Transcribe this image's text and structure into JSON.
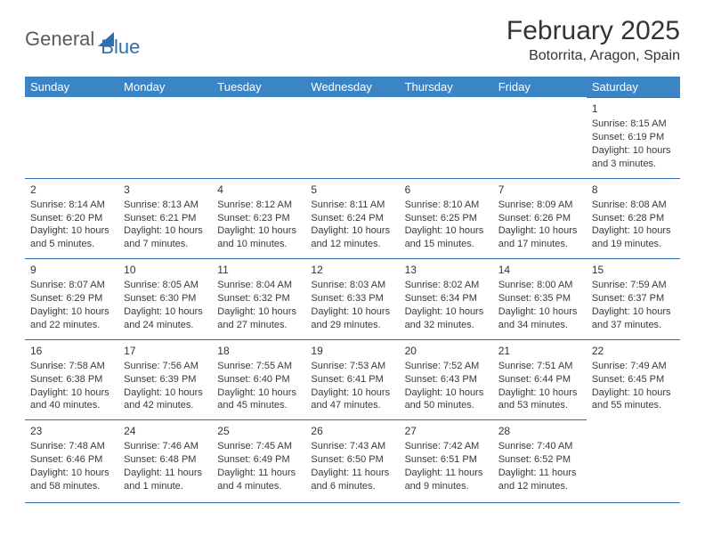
{
  "logo": {
    "word1": "General",
    "word2": "Blue"
  },
  "title": "February 2025",
  "location": "Botorrita, Aragon, Spain",
  "colors": {
    "header_bg": "#3b85c4",
    "rule": "#2f6fb0",
    "text": "#333333",
    "logo_gray": "#5a5a5a",
    "logo_blue": "#2f6fb0",
    "page_bg": "#ffffff"
  },
  "weekdays": [
    "Sunday",
    "Monday",
    "Tuesday",
    "Wednesday",
    "Thursday",
    "Friday",
    "Saturday"
  ],
  "first_weekday_index": 6,
  "days": [
    {
      "n": 1,
      "sunrise": "8:15 AM",
      "sunset": "6:19 PM",
      "daylight": "10 hours and 3 minutes."
    },
    {
      "n": 2,
      "sunrise": "8:14 AM",
      "sunset": "6:20 PM",
      "daylight": "10 hours and 5 minutes."
    },
    {
      "n": 3,
      "sunrise": "8:13 AM",
      "sunset": "6:21 PM",
      "daylight": "10 hours and 7 minutes."
    },
    {
      "n": 4,
      "sunrise": "8:12 AM",
      "sunset": "6:23 PM",
      "daylight": "10 hours and 10 minutes."
    },
    {
      "n": 5,
      "sunrise": "8:11 AM",
      "sunset": "6:24 PM",
      "daylight": "10 hours and 12 minutes."
    },
    {
      "n": 6,
      "sunrise": "8:10 AM",
      "sunset": "6:25 PM",
      "daylight": "10 hours and 15 minutes."
    },
    {
      "n": 7,
      "sunrise": "8:09 AM",
      "sunset": "6:26 PM",
      "daylight": "10 hours and 17 minutes."
    },
    {
      "n": 8,
      "sunrise": "8:08 AM",
      "sunset": "6:28 PM",
      "daylight": "10 hours and 19 minutes."
    },
    {
      "n": 9,
      "sunrise": "8:07 AM",
      "sunset": "6:29 PM",
      "daylight": "10 hours and 22 minutes."
    },
    {
      "n": 10,
      "sunrise": "8:05 AM",
      "sunset": "6:30 PM",
      "daylight": "10 hours and 24 minutes."
    },
    {
      "n": 11,
      "sunrise": "8:04 AM",
      "sunset": "6:32 PM",
      "daylight": "10 hours and 27 minutes."
    },
    {
      "n": 12,
      "sunrise": "8:03 AM",
      "sunset": "6:33 PM",
      "daylight": "10 hours and 29 minutes."
    },
    {
      "n": 13,
      "sunrise": "8:02 AM",
      "sunset": "6:34 PM",
      "daylight": "10 hours and 32 minutes."
    },
    {
      "n": 14,
      "sunrise": "8:00 AM",
      "sunset": "6:35 PM",
      "daylight": "10 hours and 34 minutes."
    },
    {
      "n": 15,
      "sunrise": "7:59 AM",
      "sunset": "6:37 PM",
      "daylight": "10 hours and 37 minutes."
    },
    {
      "n": 16,
      "sunrise": "7:58 AM",
      "sunset": "6:38 PM",
      "daylight": "10 hours and 40 minutes."
    },
    {
      "n": 17,
      "sunrise": "7:56 AM",
      "sunset": "6:39 PM",
      "daylight": "10 hours and 42 minutes."
    },
    {
      "n": 18,
      "sunrise": "7:55 AM",
      "sunset": "6:40 PM",
      "daylight": "10 hours and 45 minutes."
    },
    {
      "n": 19,
      "sunrise": "7:53 AM",
      "sunset": "6:41 PM",
      "daylight": "10 hours and 47 minutes."
    },
    {
      "n": 20,
      "sunrise": "7:52 AM",
      "sunset": "6:43 PM",
      "daylight": "10 hours and 50 minutes."
    },
    {
      "n": 21,
      "sunrise": "7:51 AM",
      "sunset": "6:44 PM",
      "daylight": "10 hours and 53 minutes."
    },
    {
      "n": 22,
      "sunrise": "7:49 AM",
      "sunset": "6:45 PM",
      "daylight": "10 hours and 55 minutes."
    },
    {
      "n": 23,
      "sunrise": "7:48 AM",
      "sunset": "6:46 PM",
      "daylight": "10 hours and 58 minutes."
    },
    {
      "n": 24,
      "sunrise": "7:46 AM",
      "sunset": "6:48 PM",
      "daylight": "11 hours and 1 minute."
    },
    {
      "n": 25,
      "sunrise": "7:45 AM",
      "sunset": "6:49 PM",
      "daylight": "11 hours and 4 minutes."
    },
    {
      "n": 26,
      "sunrise": "7:43 AM",
      "sunset": "6:50 PM",
      "daylight": "11 hours and 6 minutes."
    },
    {
      "n": 27,
      "sunrise": "7:42 AM",
      "sunset": "6:51 PM",
      "daylight": "11 hours and 9 minutes."
    },
    {
      "n": 28,
      "sunrise": "7:40 AM",
      "sunset": "6:52 PM",
      "daylight": "11 hours and 12 minutes."
    }
  ],
  "labels": {
    "sunrise": "Sunrise: ",
    "sunset": "Sunset: ",
    "daylight": "Daylight: "
  }
}
